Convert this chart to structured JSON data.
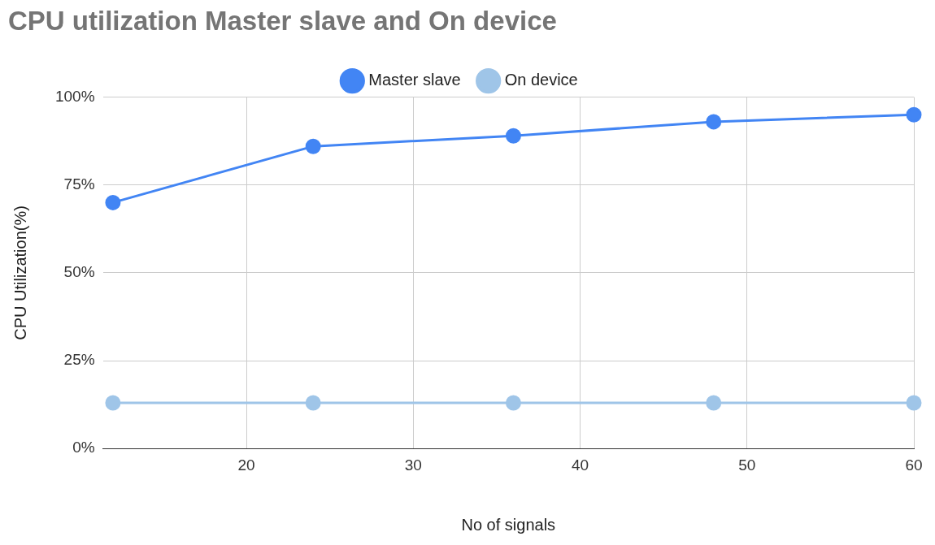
{
  "chart_data": {
    "type": "line",
    "title": "CPU utilization Master slave and On device",
    "xlabel": "No of signals",
    "ylabel": "CPU Utilization(%)",
    "x": [
      12,
      24,
      36,
      48,
      60
    ],
    "series": [
      {
        "name": "Master slave",
        "color": "#4285f4",
        "values": [
          70,
          86,
          89,
          93,
          95
        ]
      },
      {
        "name": "On device",
        "color": "#9fc5e8",
        "values": [
          13,
          13,
          13,
          13,
          13
        ]
      }
    ],
    "xlim": [
      11.4,
      60
    ],
    "xticks": [
      20,
      30,
      40,
      50,
      60
    ],
    "ylim": [
      0,
      100
    ],
    "yticks": [
      {
        "value": 0,
        "label": "0%"
      },
      {
        "value": 25,
        "label": "25%"
      },
      {
        "value": 50,
        "label": "50%"
      },
      {
        "value": 75,
        "label": "75%"
      },
      {
        "value": 100,
        "label": "100%"
      }
    ],
    "grid": true,
    "legend": "top",
    "marker": "circle",
    "line_style": "solid"
  }
}
